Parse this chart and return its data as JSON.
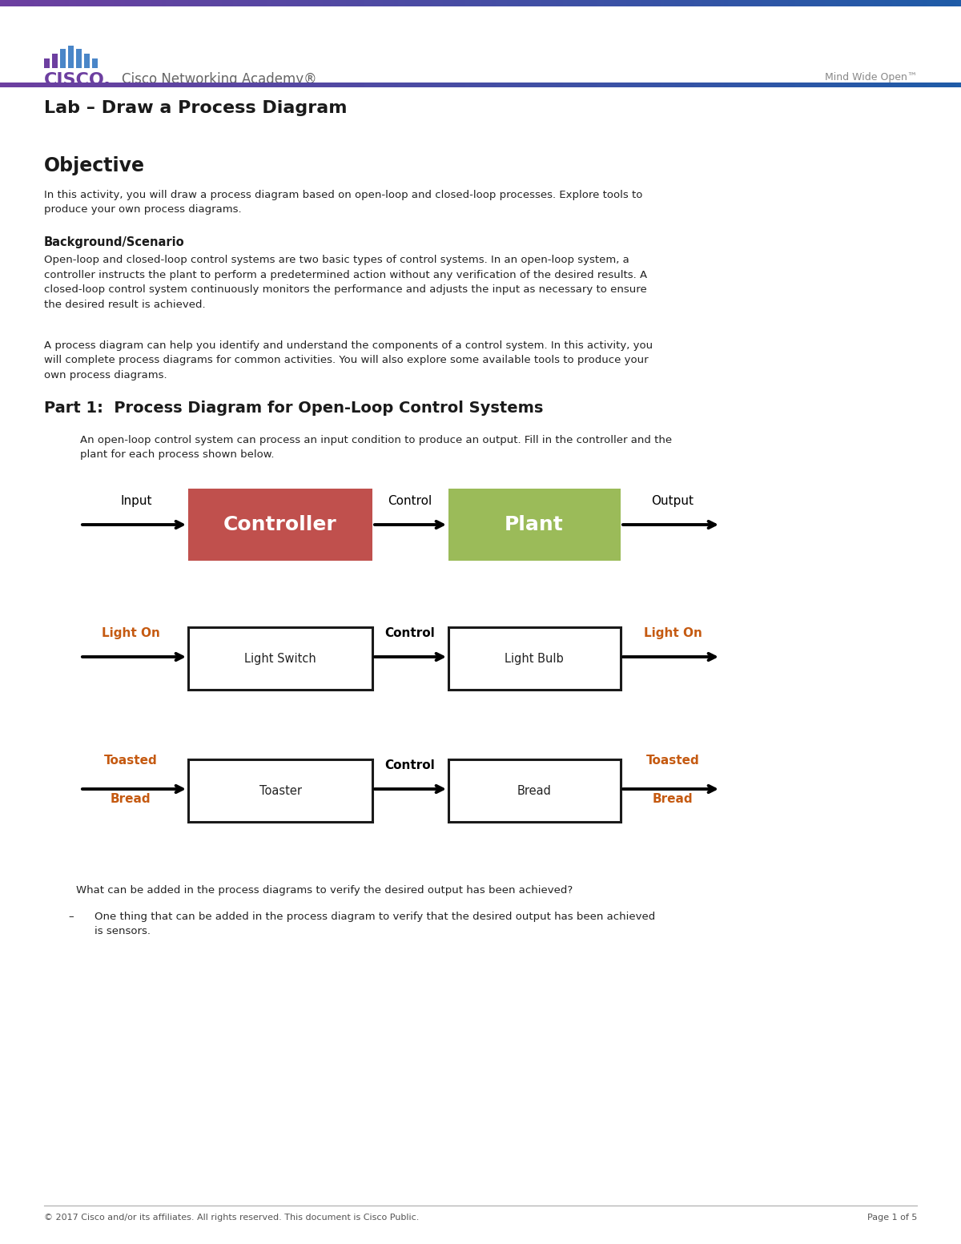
{
  "page_bg": "#ffffff",
  "purple_bar_color": "#6d3fa0",
  "blue_bar_color": "#2b579a",
  "cisco_color": "#6d3fa0",
  "cisco_bar_colors": [
    "#6d3fa0",
    "#6d3fa0",
    "#4a86c8",
    "#4a86c8",
    "#4a86c8",
    "#4a86c8",
    "#4a86c8"
  ],
  "cisco_academy_text": "Cisco Networking Academy®",
  "mind_wide_open": "Mind Wide Open™",
  "lab_title": "Lab – Draw a Process Diagram",
  "objective_title": "Objective",
  "objective_text": "In this activity, you will draw a process diagram based on open-loop and closed-loop processes. Explore tools to\nproduce your own process diagrams.",
  "background_title": "Background/Scenario",
  "background_text1": "Open-loop and closed-loop control systems are two basic types of control systems. In an open-loop system, a\ncontroller instructs the plant to perform a predetermined action without any verification of the desired results. A\nclosed-loop control system continuously monitors the performance and adjusts the input as necessary to ensure\nthe desired result is achieved.",
  "background_text2": "A process diagram can help you identify and understand the components of a control system. In this activity, you\nwill complete process diagrams for common activities. You will also explore some available tools to produce your\nown process diagrams.",
  "part1_title": "Part 1:  Process Diagram for Open-Loop Control Systems",
  "part1_text": "An open-loop control system can process an input condition to produce an output. Fill in the controller and the\nplant for each process shown below.",
  "controller_color": "#c0504d",
  "plant_color": "#9bbb59",
  "controller_text": "Controller",
  "plant_text": "Plant",
  "orange_color": "#c55a11",
  "box_border_color": "#1a1a1a",
  "question_text": "What can be added in the process diagrams to verify the desired output has been achieved?",
  "answer_text": "One thing that can be added in the process diagram to verify that the desired output has been achieved\nis sensors.",
  "footer_text": "© 2017 Cisco and/or its affiliates. All rights reserved. This document is Cisco Public.",
  "footer_page": "Page 1 of 5"
}
